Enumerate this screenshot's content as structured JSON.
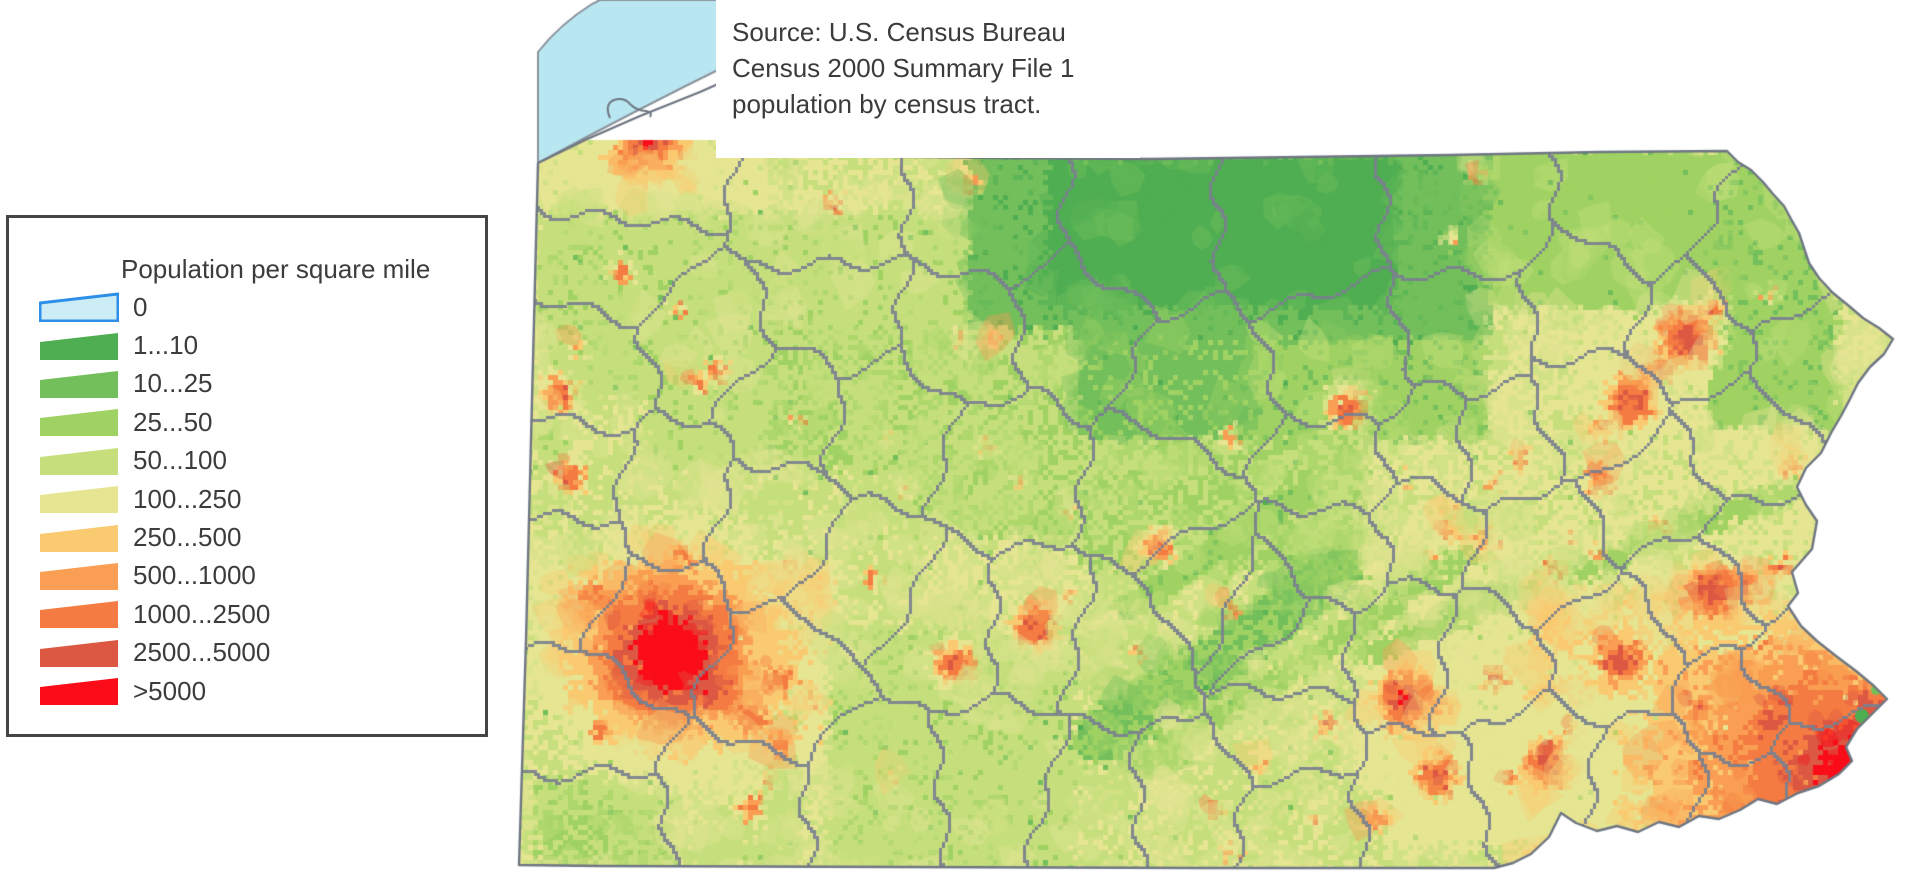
{
  "source_note": {
    "lines": [
      "Source: U.S. Census Bureau",
      "Census 2000 Summary File 1",
      "population by census tract."
    ]
  },
  "legend": {
    "title": "Population per square mile",
    "items": [
      {
        "label": "0",
        "color": "#CDEDF6",
        "border": "#2D8FE8"
      },
      {
        "label": "1...10",
        "color": "#4FAE52"
      },
      {
        "label": "10...25",
        "color": "#73BF5B"
      },
      {
        "label": "25...50",
        "color": "#A0D263"
      },
      {
        "label": "50...100",
        "color": "#C6DF7C"
      },
      {
        "label": "100...250",
        "color": "#E6E592"
      },
      {
        "label": "250...500",
        "color": "#FACA71"
      },
      {
        "label": "500...1000",
        "color": "#F99E52"
      },
      {
        "label": "1000...2500",
        "color": "#F47B41"
      },
      {
        "label": "2500...5000",
        "color": "#DC5843"
      },
      {
        "label": ">5000",
        "color": "#FA0D18"
      }
    ]
  },
  "map": {
    "water_color": "#B9E7F1",
    "boundary_color": "#79808E",
    "outline_color": "#6E7682"
  }
}
